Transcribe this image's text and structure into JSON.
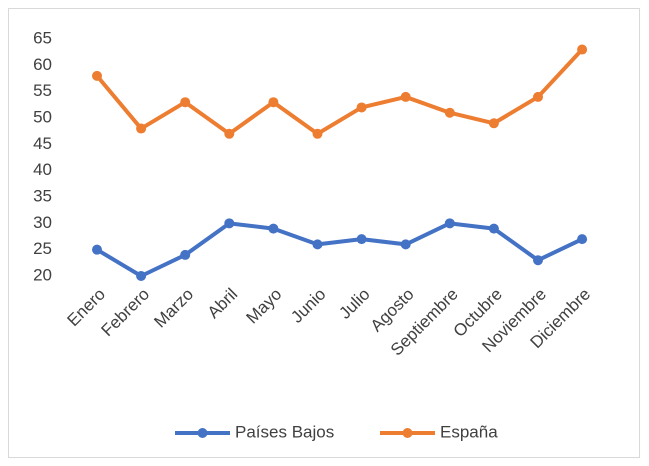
{
  "chart_data": {
    "type": "line",
    "categories": [
      "Enero",
      "Febrero",
      "Marzo",
      "Abril",
      "Mayo",
      "Junio",
      "Julio",
      "Agosto",
      "Septiembre",
      "Octubre",
      "Noviembre",
      "Diciembre"
    ],
    "series": [
      {
        "name": "Países Bajos",
        "color": "#4472c4",
        "values": [
          25,
          20,
          24,
          30,
          29,
          26,
          27,
          26,
          30,
          29,
          23,
          27
        ]
      },
      {
        "name": "España",
        "color": "#ed7d31",
        "values": [
          58,
          48,
          53,
          47,
          53,
          47,
          52,
          54,
          51,
          49,
          54,
          63
        ]
      }
    ],
    "ylim": [
      20,
      65
    ],
    "yticks": [
      20,
      25,
      30,
      35,
      40,
      45,
      50,
      55,
      60,
      65
    ],
    "grid": false,
    "legend": "bottom"
  }
}
